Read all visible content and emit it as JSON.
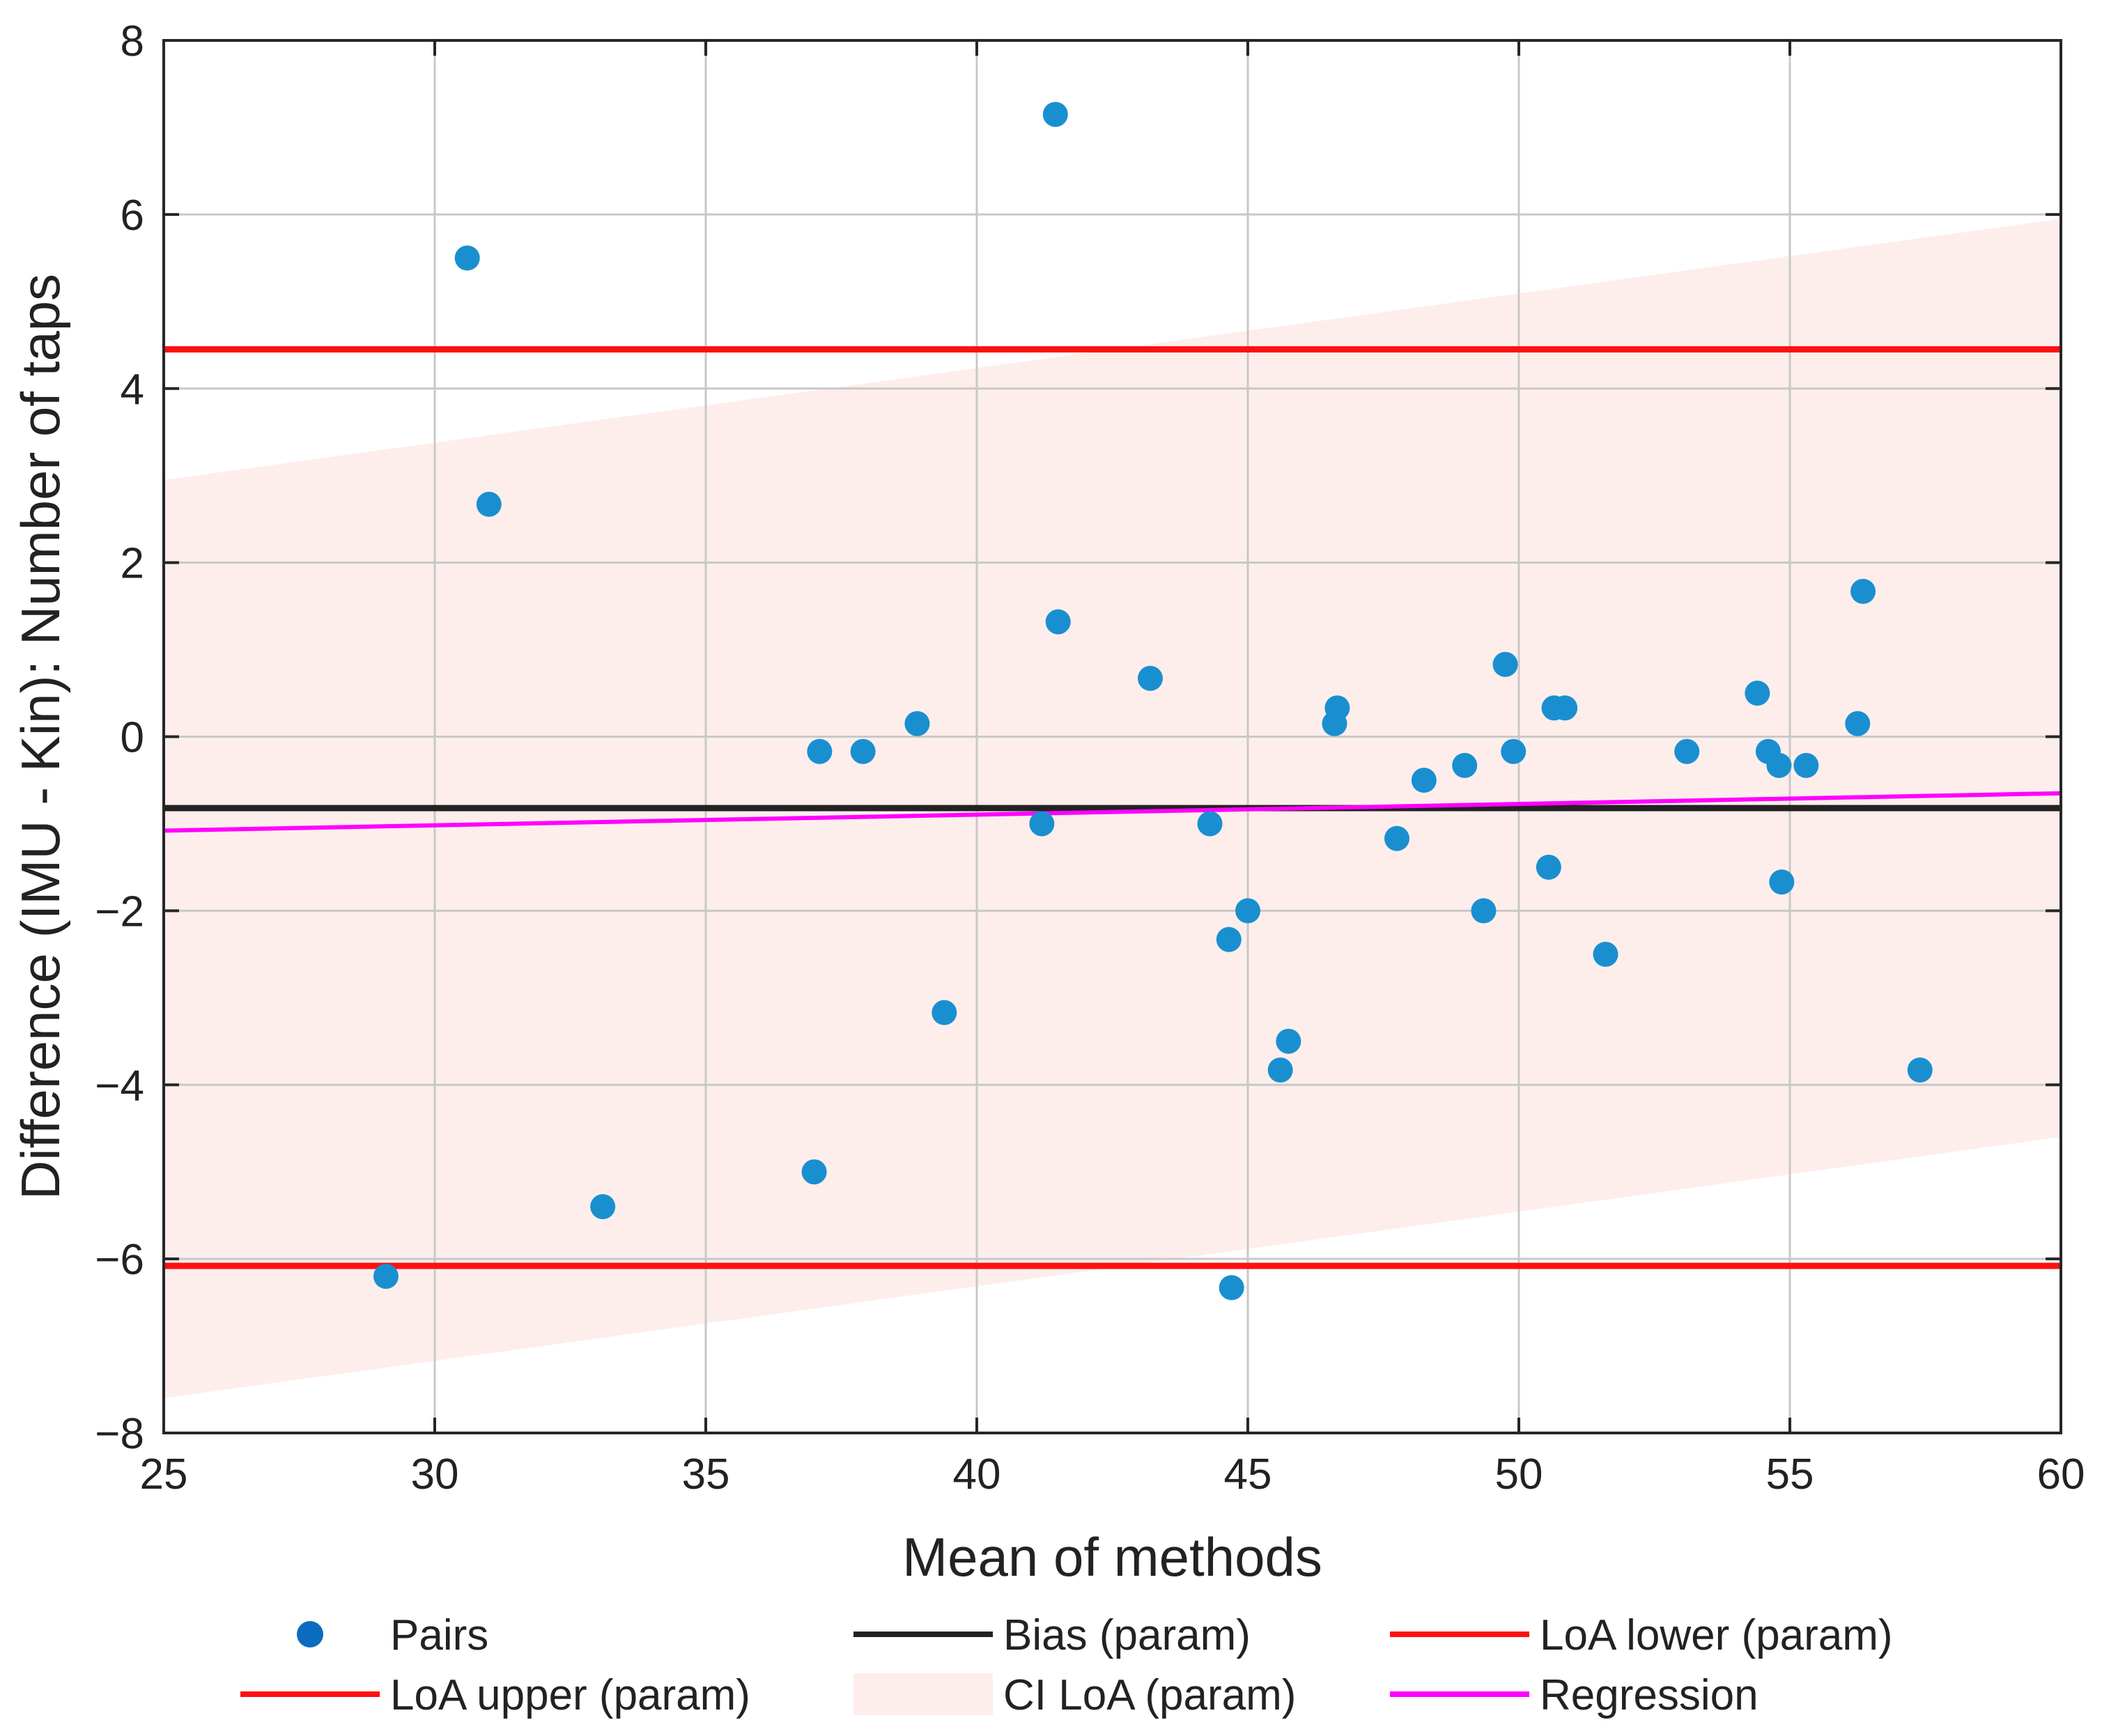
{
  "chart_data": {
    "type": "scatter",
    "title": "",
    "xlabel": "Mean of methods",
    "ylabel": "Difference (IMU - Kin): Number of taps",
    "xlim": [
      25,
      60
    ],
    "ylim": [
      -8,
      8
    ],
    "xticks": [
      25,
      30,
      35,
      40,
      45,
      50,
      55,
      60
    ],
    "yticks": [
      -8,
      -6,
      -4,
      -2,
      0,
      2,
      4,
      6,
      8
    ],
    "xtick_labels": [
      "25",
      "30",
      "35",
      "40",
      "45",
      "50",
      "55",
      "60"
    ],
    "ytick_labels": [
      "−8",
      "−6",
      "−4",
      "−2",
      "0",
      "2",
      "4",
      "6",
      "8"
    ],
    "grid": true,
    "legend_position": "bottom",
    "colors": {
      "points": "#1a8fd0",
      "points_dark": "#0a6bbf",
      "bias": "#222222",
      "loa": "#ff1010",
      "ci_fill": "#fdeeec",
      "regression": "#ff00ff"
    },
    "series": [
      {
        "name": "Pairs",
        "kind": "scatter",
        "points": [
          {
            "x": 29.1,
            "y": -6.2
          },
          {
            "x": 30.6,
            "y": 5.5
          },
          {
            "x": 31.0,
            "y": 2.67
          },
          {
            "x": 33.1,
            "y": -5.4
          },
          {
            "x": 37.0,
            "y": -5.0
          },
          {
            "x": 37.1,
            "y": -0.17
          },
          {
            "x": 37.9,
            "y": -0.17
          },
          {
            "x": 38.9,
            "y": 0.15
          },
          {
            "x": 39.4,
            "y": -3.17
          },
          {
            "x": 41.2,
            "y": -1.0
          },
          {
            "x": 41.45,
            "y": 7.15
          },
          {
            "x": 41.5,
            "y": 1.32
          },
          {
            "x": 43.2,
            "y": 0.67
          },
          {
            "x": 44.3,
            "y": -1.0
          },
          {
            "x": 44.65,
            "y": -2.33
          },
          {
            "x": 44.7,
            "y": -6.33
          },
          {
            "x": 45.0,
            "y": -2.0
          },
          {
            "x": 45.6,
            "y": -3.83
          },
          {
            "x": 45.75,
            "y": -3.5
          },
          {
            "x": 46.6,
            "y": 0.15
          },
          {
            "x": 46.65,
            "y": 0.33
          },
          {
            "x": 47.75,
            "y": -1.17
          },
          {
            "x": 48.25,
            "y": -0.5
          },
          {
            "x": 49.0,
            "y": -0.33
          },
          {
            "x": 49.35,
            "y": -2.0
          },
          {
            "x": 49.75,
            "y": 0.83
          },
          {
            "x": 49.9,
            "y": -0.17
          },
          {
            "x": 50.55,
            "y": -1.5
          },
          {
            "x": 50.65,
            "y": 0.33
          },
          {
            "x": 50.85,
            "y": 0.33
          },
          {
            "x": 51.6,
            "y": -2.5
          },
          {
            "x": 53.1,
            "y": -0.17
          },
          {
            "x": 54.4,
            "y": 0.5
          },
          {
            "x": 54.6,
            "y": -0.17
          },
          {
            "x": 54.8,
            "y": -0.33
          },
          {
            "x": 54.85,
            "y": -1.67
          },
          {
            "x": 55.3,
            "y": -0.33
          },
          {
            "x": 56.25,
            "y": 0.15
          },
          {
            "x": 56.35,
            "y": 1.67
          },
          {
            "x": 57.4,
            "y": -3.83
          }
        ]
      },
      {
        "name": "Bias (param)",
        "kind": "hline",
        "y": -0.82
      },
      {
        "name": "LoA lower (param)",
        "kind": "hline",
        "y": -6.08
      },
      {
        "name": "LoA upper (param)",
        "kind": "hline",
        "y": 4.45
      },
      {
        "name": "CI LoA (param)",
        "kind": "band",
        "x": [
          25,
          60
        ],
        "upper": [
          2.95,
          5.95
        ],
        "lower": [
          -7.6,
          -4.6
        ]
      },
      {
        "name": "Regression",
        "kind": "line",
        "x": [
          25,
          60
        ],
        "y": [
          -1.08,
          -0.65
        ]
      }
    ],
    "legend": [
      {
        "label": "Pairs",
        "kind": "marker",
        "color": "#0a6bbf"
      },
      {
        "label": "Bias (param)",
        "kind": "line",
        "color": "#222222"
      },
      {
        "label": "LoA lower (param)",
        "kind": "line",
        "color": "#ff1010"
      },
      {
        "label": "LoA upper (param)",
        "kind": "line",
        "color": "#ff1010"
      },
      {
        "label": "CI LoA (param)",
        "kind": "patch",
        "color": "#fdeeec"
      },
      {
        "label": "Regression",
        "kind": "line",
        "color": "#ff00ff"
      }
    ]
  }
}
